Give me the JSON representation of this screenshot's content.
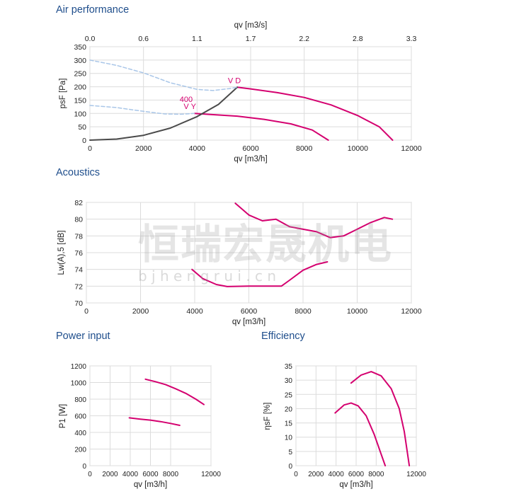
{
  "sections": {
    "air": "Air performance",
    "acoustics": "Acoustics",
    "power": "Power input",
    "efficiency": "Efficiency"
  },
  "watermark": {
    "cn": "恒瑞宏晟机电",
    "url": "b j h e n g r u i . c n"
  },
  "colors": {
    "curve": "#d4006f",
    "system": "#4a4a4a",
    "dashed": "#a9c6e8",
    "grid": "#dcdcdc",
    "title": "#1f4e8c"
  },
  "chart_data": [
    {
      "id": "air",
      "type": "line",
      "xlabel": "qv [m3/h]",
      "ylabel": "psF [Pa]",
      "x2label": "qv [m3/s]",
      "xlim": [
        0,
        12000
      ],
      "ylim": [
        0,
        350
      ],
      "xticks": [
        0,
        2000,
        4000,
        6000,
        8000,
        10000,
        12000
      ],
      "yticks": [
        0,
        50,
        100,
        150,
        200,
        250,
        300,
        350
      ],
      "x2ticks": [
        "0.0",
        "0.6",
        "1.1",
        "1.7",
        "2.2",
        "2.8",
        "3.3"
      ],
      "annotations": [
        {
          "text": "V D",
          "x": 5150,
          "y": 213
        },
        {
          "text": "400",
          "x": 3350,
          "y": 143
        },
        {
          "text": "V Y",
          "x": 3500,
          "y": 117
        }
      ],
      "series": [
        {
          "style": "solid",
          "points": [
            [
              5500,
              198
            ],
            [
              6000,
              192
            ],
            [
              7000,
              178
            ],
            [
              8000,
              160
            ],
            [
              9000,
              132
            ],
            [
              10000,
              92
            ],
            [
              10800,
              50
            ],
            [
              11300,
              0
            ]
          ]
        },
        {
          "style": "solid",
          "points": [
            [
              3900,
              100
            ],
            [
              4500,
              96
            ],
            [
              5500,
              90
            ],
            [
              6500,
              78
            ],
            [
              7500,
              61
            ],
            [
              8300,
              38
            ],
            [
              8900,
              0
            ]
          ]
        },
        {
          "style": "system",
          "points": [
            [
              0,
              0
            ],
            [
              1000,
              4
            ],
            [
              2000,
              18
            ],
            [
              3000,
              45
            ],
            [
              4000,
              88
            ],
            [
              4800,
              134
            ],
            [
              5500,
              198
            ]
          ]
        },
        {
          "style": "dashed",
          "points": [
            [
              0,
              300
            ],
            [
              1000,
              280
            ],
            [
              2000,
              252
            ],
            [
              3000,
              215
            ],
            [
              4000,
              190
            ],
            [
              4600,
              186
            ],
            [
              5200,
              193
            ],
            [
              5500,
              198
            ]
          ]
        },
        {
          "style": "dashed",
          "points": [
            [
              0,
              130
            ],
            [
              1000,
              122
            ],
            [
              2000,
              108
            ],
            [
              2800,
              98
            ],
            [
              3400,
              97
            ],
            [
              3900,
              100
            ]
          ]
        }
      ]
    },
    {
      "id": "acoustics",
      "type": "line",
      "xlabel": "qv [m3/h]",
      "ylabel": "Lw(A),5 [dB]",
      "xlim": [
        0,
        12000
      ],
      "ylim": [
        70,
        82
      ],
      "xticks": [
        0,
        2000,
        4000,
        6000,
        8000,
        10000,
        12000
      ],
      "yticks": [
        70,
        72,
        74,
        76,
        78,
        80,
        82
      ],
      "series": [
        {
          "style": "solid",
          "points": [
            [
              5500,
              81.9
            ],
            [
              6000,
              80.5
            ],
            [
              6500,
              79.8
            ],
            [
              7000,
              80.0
            ],
            [
              7500,
              79.1
            ],
            [
              8000,
              78.8
            ],
            [
              8500,
              78.5
            ],
            [
              9000,
              77.8
            ],
            [
              9500,
              78.0
            ],
            [
              10000,
              78.8
            ],
            [
              10500,
              79.6
            ],
            [
              11000,
              80.2
            ],
            [
              11300,
              80.0
            ]
          ]
        },
        {
          "style": "solid",
          "points": [
            [
              3900,
              74.0
            ],
            [
              4300,
              72.9
            ],
            [
              4800,
              72.2
            ],
            [
              5200,
              71.95
            ],
            [
              6000,
              72.0
            ],
            [
              6800,
              72.0
            ],
            [
              7200,
              72.0
            ],
            [
              7500,
              72.7
            ],
            [
              8000,
              73.9
            ],
            [
              8500,
              74.6
            ],
            [
              8900,
              74.9
            ]
          ]
        }
      ]
    },
    {
      "id": "power",
      "type": "line",
      "xlabel": "qv [m3/h]",
      "ylabel": "P1 [W]",
      "xlim": [
        0,
        12000
      ],
      "ylim": [
        0,
        1200
      ],
      "xticks": [
        0,
        2000,
        4000,
        6000,
        8000,
        12000
      ],
      "yticks": [
        0,
        200,
        400,
        600,
        800,
        1000,
        1200
      ],
      "series": [
        {
          "style": "solid",
          "points": [
            [
              5500,
              1040
            ],
            [
              6500,
              1010
            ],
            [
              7500,
              975
            ],
            [
              8500,
              925
            ],
            [
              9500,
              870
            ],
            [
              10500,
              800
            ],
            [
              11300,
              735
            ]
          ]
        },
        {
          "style": "solid",
          "points": [
            [
              3900,
              575
            ],
            [
              5000,
              560
            ],
            [
              6000,
              548
            ],
            [
              7000,
              530
            ],
            [
              8000,
              508
            ],
            [
              8900,
              485
            ]
          ]
        }
      ]
    },
    {
      "id": "efficiency",
      "type": "line",
      "xlabel": "qv [m3/h]",
      "ylabel": "ηsF [%]",
      "xlim": [
        0,
        12000
      ],
      "ylim": [
        0,
        35
      ],
      "xticks": [
        0,
        2000,
        4000,
        6000,
        8000,
        12000
      ],
      "yticks": [
        0,
        5,
        10,
        15,
        20,
        25,
        30,
        35
      ],
      "series": [
        {
          "style": "solid",
          "points": [
            [
              5500,
              29
            ],
            [
              6500,
              31.8
            ],
            [
              7500,
              33
            ],
            [
              8500,
              31.5
            ],
            [
              9500,
              27
            ],
            [
              10300,
              20
            ],
            [
              10800,
              12
            ],
            [
              11300,
              0
            ]
          ]
        },
        {
          "style": "solid",
          "points": [
            [
              3900,
              18.5
            ],
            [
              4800,
              21.3
            ],
            [
              5500,
              22
            ],
            [
              6200,
              21
            ],
            [
              7000,
              17.5
            ],
            [
              7800,
              11
            ],
            [
              8400,
              5
            ],
            [
              8900,
              0
            ]
          ]
        }
      ]
    }
  ]
}
